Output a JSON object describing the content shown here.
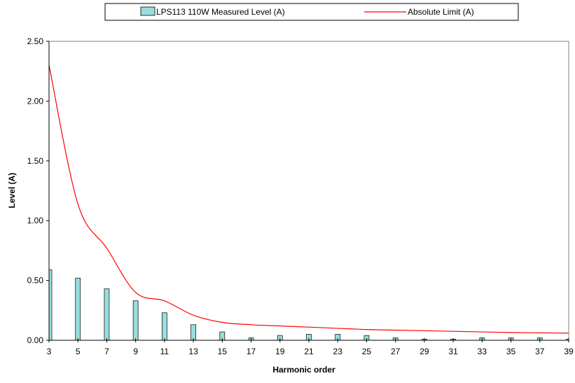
{
  "chart_data": {
    "type": "bar",
    "xlabel": "Harmonic order",
    "ylabel": "Level (A)",
    "x_tick_labels": [
      "3",
      "5",
      "7",
      "9",
      "11",
      "13",
      "15",
      "17",
      "19",
      "21",
      "23",
      "25",
      "27",
      "29",
      "31",
      "33",
      "35",
      "37",
      "39"
    ],
    "y_tick_labels": [
      "0.00",
      "0.50",
      "1.00",
      "1.50",
      "2.00",
      "2.50"
    ],
    "xlim": [
      3,
      39
    ],
    "ylim": [
      0,
      2.5
    ],
    "grid": false,
    "legend_position": "top",
    "series": [
      {
        "name": "LPS113 110W  Measured Level (A)",
        "type": "bar",
        "color": "#99dddd",
        "x": [
          3,
          5,
          7,
          9,
          11,
          13,
          15,
          17,
          19,
          21,
          23,
          25,
          27,
          29,
          31,
          33,
          35,
          37,
          39
        ],
        "values": [
          0.59,
          0.52,
          0.43,
          0.33,
          0.23,
          0.13,
          0.07,
          0.02,
          0.04,
          0.05,
          0.05,
          0.04,
          0.02,
          0.01,
          0.01,
          0.02,
          0.02,
          0.02,
          0.01
        ]
      },
      {
        "name": "Absolute Limit (A)",
        "type": "line",
        "color": "#ff0000",
        "x": [
          3,
          5,
          7,
          9,
          11,
          13,
          15,
          17,
          19,
          21,
          23,
          25,
          27,
          29,
          31,
          33,
          35,
          37,
          39
        ],
        "values": [
          2.3,
          1.14,
          0.77,
          0.4,
          0.33,
          0.21,
          0.15,
          0.13,
          0.12,
          0.11,
          0.1,
          0.09,
          0.085,
          0.08,
          0.075,
          0.07,
          0.065,
          0.062,
          0.06
        ]
      }
    ]
  }
}
